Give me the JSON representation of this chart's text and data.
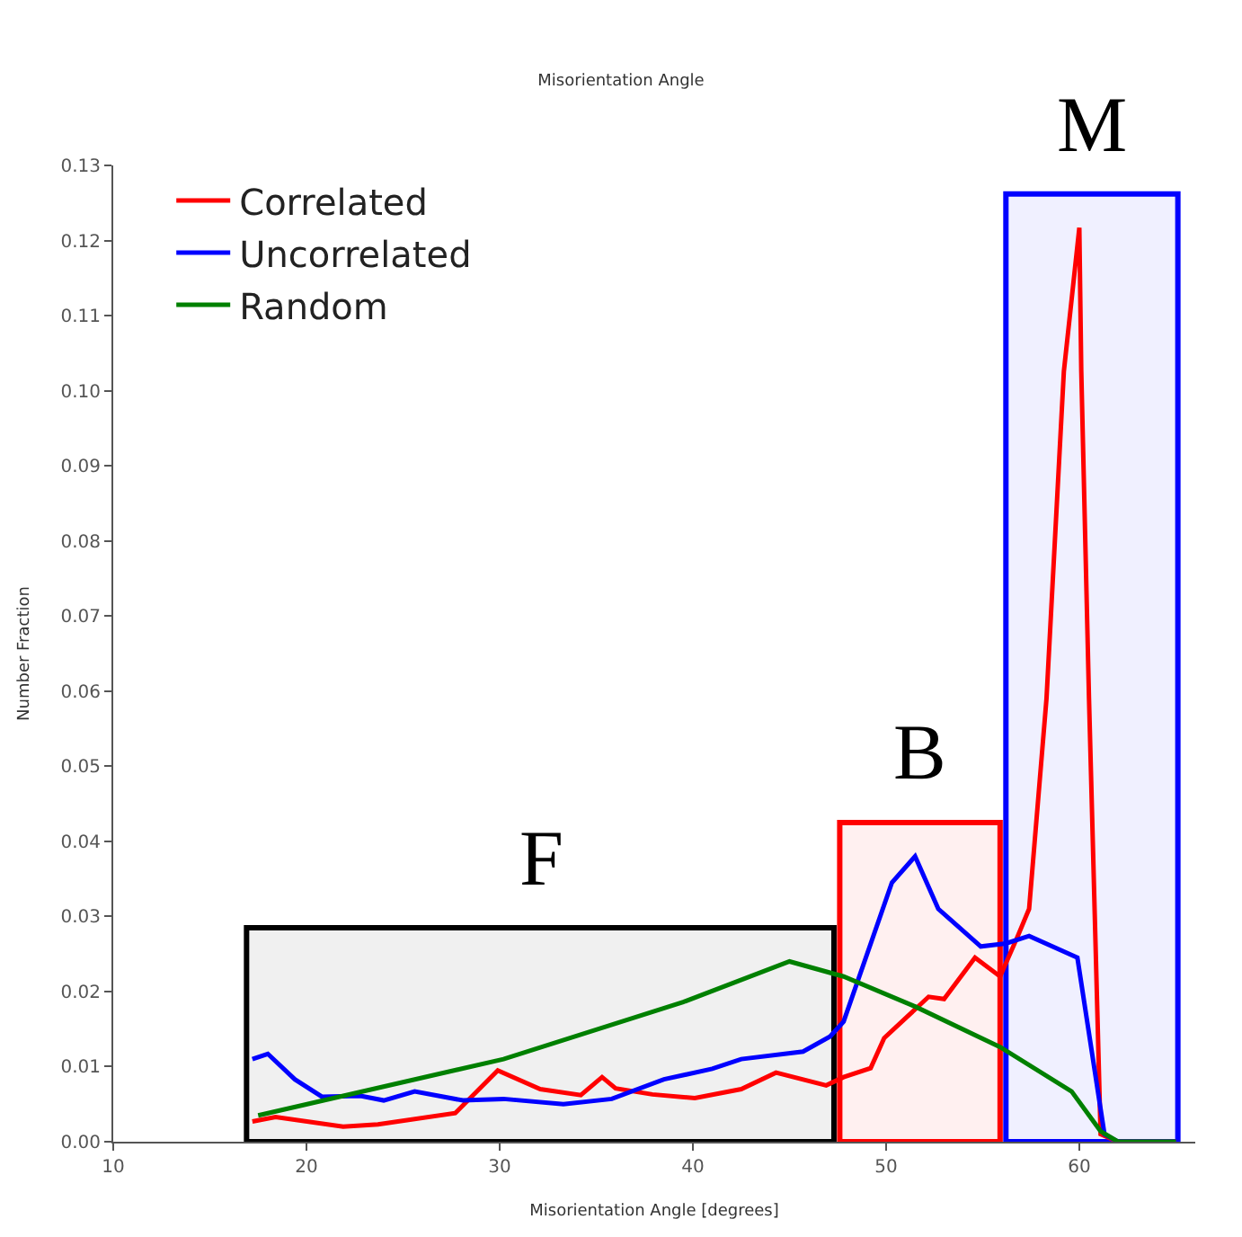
{
  "chart_data": {
    "type": "line",
    "title": "Misorientation Angle",
    "xlabel": "Misorientation Angle [degrees]",
    "ylabel": "Number Fraction",
    "xlim": [
      10,
      66
    ],
    "xticks": [
      10,
      20,
      30,
      40,
      50,
      60
    ],
    "ylim": [
      0,
      0.13
    ],
    "yticks": [
      {
        "value": 0,
        "label": "0.00"
      },
      {
        "value": 0.01,
        "label": "0.01"
      },
      {
        "value": 0.02,
        "label": "0.02"
      },
      {
        "value": 0.03,
        "label": "0.03"
      },
      {
        "value": 0.04,
        "label": "0.04"
      },
      {
        "value": 0.05,
        "label": "0.05"
      },
      {
        "value": 0.06,
        "label": "0.06"
      },
      {
        "value": 0.07,
        "label": "0.07"
      },
      {
        "value": 0.08,
        "label": "0.08"
      },
      {
        "value": 0.09,
        "label": "0.09"
      },
      {
        "value": 0.1,
        "label": "0.10"
      },
      {
        "value": 0.11,
        "label": "0.11"
      },
      {
        "value": 0.12,
        "label": "0.12"
      },
      {
        "value": 0.13,
        "label": "0.13"
      }
    ],
    "grid": false,
    "legend": "top left",
    "marker": "none",
    "line_style": "solid",
    "series": [
      {
        "name": "Correlated",
        "color": "#ff0000",
        "x": [
          17.2,
          18.4,
          21.9,
          23.7,
          27.7,
          29.9,
          32.1,
          34.2,
          35.3,
          36,
          37.9,
          40.1,
          42.5,
          44.3,
          46.9,
          47.8,
          49.2,
          49.9,
          52.2,
          53,
          54.6,
          55.9,
          56.8,
          57.4,
          58.3,
          59.2,
          60,
          60.1,
          60.5,
          61.1,
          62,
          65
        ],
        "values": [
          0.0027,
          0.0033,
          0.002,
          0.0023,
          0.0038,
          0.0095,
          0.007,
          0.0062,
          0.0086,
          0.0071,
          0.0063,
          0.0058,
          0.007,
          0.0092,
          0.0075,
          0.0086,
          0.0098,
          0.0138,
          0.0193,
          0.019,
          0.0245,
          0.022,
          0.0273,
          0.031,
          0.059,
          0.1026,
          0.1217,
          0.1026,
          0.059,
          0.001,
          0,
          0
        ]
      },
      {
        "name": "Uncorrelated",
        "color": "#0000ff",
        "x": [
          17.2,
          18,
          19.4,
          20.8,
          22.8,
          24,
          25.6,
          28.1,
          30.2,
          33.3,
          35.8,
          38.5,
          41,
          42.5,
          45.7,
          47.1,
          47.8,
          50.3,
          51.5,
          52.7,
          54.9,
          56.2,
          57.4,
          59.9,
          61.3,
          62,
          65
        ],
        "values": [
          0.011,
          0.0117,
          0.0083,
          0.006,
          0.0061,
          0.0055,
          0.0067,
          0.0055,
          0.0057,
          0.005,
          0.0057,
          0.0083,
          0.0097,
          0.011,
          0.012,
          0.014,
          0.016,
          0.0345,
          0.038,
          0.031,
          0.026,
          0.0264,
          0.0274,
          0.0245,
          0.001,
          0,
          0
        ]
      },
      {
        "name": "Random",
        "color": "#008000",
        "x": [
          17.5,
          30.2,
          39.5,
          45,
          47.8,
          51.5,
          55.9,
          59.6,
          61.1,
          62,
          65
        ],
        "values": [
          0.0035,
          0.011,
          0.0186,
          0.024,
          0.022,
          0.018,
          0.0126,
          0.0067,
          0.0014,
          0,
          0
        ]
      }
    ],
    "bands": [
      {
        "axis": "x",
        "from": 16.9,
        "to": 47.3,
        "label": "F",
        "color": "#000000"
      },
      {
        "axis": "x",
        "from": 47.6,
        "to": 55.9,
        "label": "B",
        "color": "#ff0000"
      },
      {
        "axis": "x",
        "from": 56.2,
        "to": 65.1,
        "label": "M",
        "color": "#0000ff"
      }
    ]
  }
}
